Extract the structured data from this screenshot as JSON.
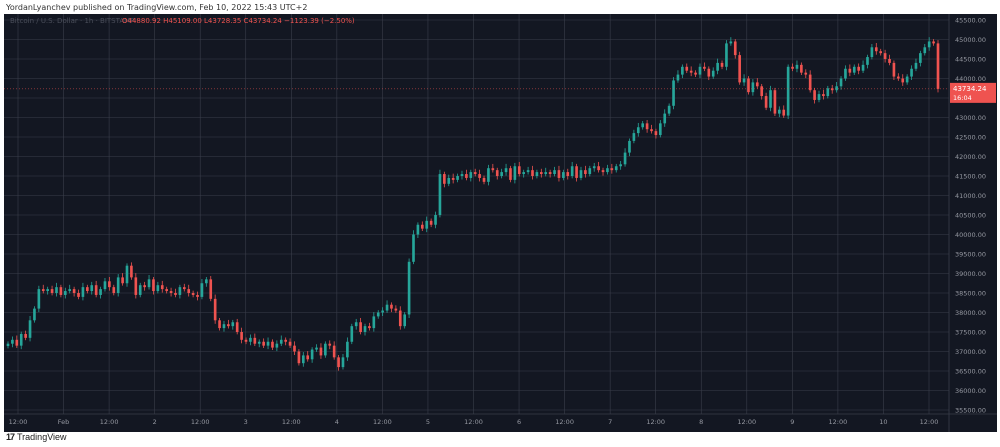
{
  "header": {
    "publisher_line": "YordanLyanchev published on TradingView.com, Feb 10, 2022 15:43 UTC+2"
  },
  "footer": {
    "brand": "TradingView"
  },
  "colors": {
    "background": "#131722",
    "grid": "#3a3e4a",
    "up": "#26a69a",
    "down": "#ef5350",
    "axis_text": "#9598a1"
  },
  "chart_data": {
    "type": "candlestick",
    "title": "Bitcoin / U.S. Dollar · 1h · BITSTAMP",
    "ohlc_text": {
      "o": "O44880.92",
      "h": "H45109.00",
      "l": "L43728.35",
      "c": "C43734.24",
      "chg": "−1123.39 (−2.50%)"
    },
    "ylim": [
      35500,
      45500
    ],
    "y_ticks": [
      "45500.00",
      "45000.00",
      "44500.00",
      "44000.00",
      "43500.00",
      "43000.00",
      "42500.00",
      "42000.00",
      "41500.00",
      "41000.00",
      "40500.00",
      "40000.00",
      "39500.00",
      "39000.00",
      "38500.00",
      "38000.00",
      "37500.00",
      "37000.00",
      "36500.00",
      "36000.00",
      "35500.00"
    ],
    "x_ticks": [
      "12:00",
      "Feb",
      "12:00",
      "2",
      "12:00",
      "3",
      "12:00",
      "4",
      "12:00",
      "5",
      "12:00",
      "6",
      "12:00",
      "7",
      "12:00",
      "8",
      "12:00",
      "9",
      "12:00",
      "10",
      "12:00"
    ],
    "last_price": {
      "value": "43734.24",
      "countdown": "16:04"
    },
    "closes": [
      37200,
      37300,
      37150,
      37450,
      37350,
      37800,
      38100,
      38600,
      38550,
      38600,
      38500,
      38650,
      38450,
      38550,
      38600,
      38500,
      38400,
      38650,
      38550,
      38700,
      38450,
      38600,
      38800,
      38650,
      38500,
      38900,
      38750,
      39200,
      38900,
      38450,
      38700,
      38650,
      38850,
      38550,
      38700,
      38600,
      38550,
      38500,
      38450,
      38650,
      38600,
      38500,
      38450,
      38400,
      38750,
      38850,
      38350,
      37800,
      37600,
      37700,
      37650,
      37750,
      37500,
      37300,
      37250,
      37350,
      37200,
      37250,
      37150,
      37250,
      37100,
      37200,
      37300,
      37250,
      37150,
      37000,
      36700,
      36900,
      36800,
      37050,
      37100,
      36900,
      37200,
      37150,
      36850,
      36600,
      36850,
      37250,
      37650,
      37750,
      37500,
      37650,
      37600,
      37900,
      38000,
      38050,
      38200,
      38100,
      38050,
      37650,
      37950,
      39300,
      40000,
      40250,
      40150,
      40350,
      40250,
      40500,
      41550,
      41300,
      41450,
      41400,
      41500,
      41550,
      41450,
      41600,
      41550,
      41450,
      41350,
      41700,
      41650,
      41500,
      41600,
      41700,
      41400,
      41750,
      41550,
      41600,
      41650,
      41500,
      41600,
      41550,
      41600,
      41550,
      41650,
      41450,
      41600,
      41500,
      41750,
      41450,
      41650,
      41550,
      41700,
      41750,
      41650,
      41600,
      41700,
      41650,
      41750,
      41800,
      42100,
      42400,
      42600,
      42750,
      42850,
      42700,
      42650,
      42550,
      42850,
      43100,
      43300,
      43950,
      44100,
      44300,
      44200,
      44150,
      44100,
      44300,
      44250,
      44050,
      44200,
      44400,
      44300,
      44900,
      44950,
      44600,
      43900,
      44000,
      43650,
      43900,
      43800,
      43550,
      43250,
      43700,
      43100,
      43200,
      43050,
      44300,
      44250,
      44350,
      44150,
      44100,
      43700,
      43450,
      43600,
      43550,
      43750,
      43700,
      43800,
      44000,
      44250,
      44150,
      44300,
      44200,
      44350,
      44550,
      44800,
      44700,
      44650,
      44500,
      44400,
      44050,
      44000,
      43900,
      44050,
      44250,
      44400,
      44650,
      44800,
      44950,
      44900,
      43734
    ]
  }
}
